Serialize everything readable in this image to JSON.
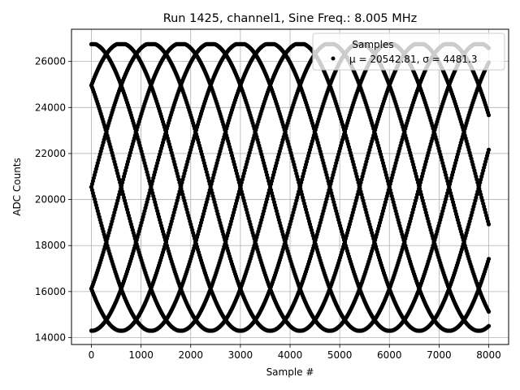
{
  "chart_data": {
    "type": "scatter",
    "title": "Run 1425, channel1, Sine Freq.: 8.005 MHz",
    "xlabel": "Sample #",
    "ylabel": "ADC Counts",
    "xlim": [
      -400,
      8400
    ],
    "ylim": [
      13700,
      27400
    ],
    "xticks": [
      0,
      1000,
      2000,
      3000,
      4000,
      5000,
      6000,
      7000,
      8000
    ],
    "yticks": [
      14000,
      16000,
      18000,
      20000,
      22000,
      24000,
      26000
    ],
    "grid": true,
    "legend": {
      "placement": "top-right",
      "title": "Samples",
      "label": "μ = 20542.81, σ = 4481.3"
    },
    "series": [
      {
        "marker_color": "#000000",
        "x_range": [
          0,
          8000
        ],
        "center": 20542.81,
        "amplitude": 6250,
        "clip": [
          14300,
          26750
        ],
        "cycle_length_samples": 4800,
        "phases_deg": [
          90,
          270,
          45,
          225,
          135,
          315,
          0,
          180
        ]
      }
    ]
  }
}
